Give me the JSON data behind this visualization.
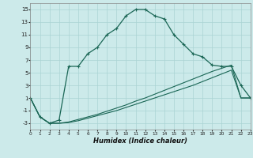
{
  "xlabel": "Humidex (Indice chaleur)",
  "bg_color": "#cceaea",
  "grid_color": "#aad4d4",
  "line_color": "#1a6655",
  "xlim": [
    0,
    23
  ],
  "ylim": [
    -4,
    16
  ],
  "xticks": [
    0,
    1,
    2,
    3,
    4,
    5,
    6,
    7,
    8,
    9,
    10,
    11,
    12,
    13,
    14,
    15,
    16,
    17,
    18,
    19,
    20,
    21,
    22,
    23
  ],
  "yticks": [
    -3,
    -1,
    1,
    3,
    5,
    7,
    9,
    11,
    13,
    15
  ],
  "curve1_x": [
    0,
    1,
    2,
    3,
    4,
    5,
    6,
    7,
    8,
    9,
    10,
    11,
    12,
    13,
    14,
    15,
    16,
    17,
    18,
    19,
    20,
    21,
    22,
    23
  ],
  "curve1_y": [
    1,
    -2,
    -3,
    -2.5,
    6,
    6,
    8,
    9,
    11,
    12,
    14,
    15,
    15,
    14,
    13.5,
    11,
    9.5,
    8,
    7.5,
    6.2,
    6.0,
    6.0,
    3,
    1
  ],
  "curve2_x": [
    0,
    1,
    2,
    3,
    4,
    5,
    6,
    7,
    8,
    9,
    10,
    11,
    12,
    13,
    14,
    15,
    16,
    17,
    18,
    19,
    20,
    21,
    22,
    23
  ],
  "curve2_y": [
    1,
    -2,
    -3,
    -3,
    -2.8,
    -2.4,
    -2.0,
    -1.6,
    -1.1,
    -0.6,
    -0.1,
    0.5,
    1.0,
    1.6,
    2.2,
    2.8,
    3.4,
    4.0,
    4.6,
    5.2,
    5.7,
    6.2,
    1,
    1
  ],
  "curve3_x": [
    0,
    1,
    2,
    3,
    4,
    5,
    6,
    7,
    8,
    9,
    10,
    11,
    12,
    13,
    14,
    15,
    16,
    17,
    18,
    19,
    20,
    21,
    22,
    23
  ],
  "curve3_y": [
    1,
    -2,
    -3,
    -3,
    -2.9,
    -2.6,
    -2.2,
    -1.8,
    -1.4,
    -1.0,
    -0.5,
    0.0,
    0.5,
    1.0,
    1.5,
    2.0,
    2.5,
    3.0,
    3.6,
    4.2,
    4.8,
    5.4,
    1,
    1
  ]
}
